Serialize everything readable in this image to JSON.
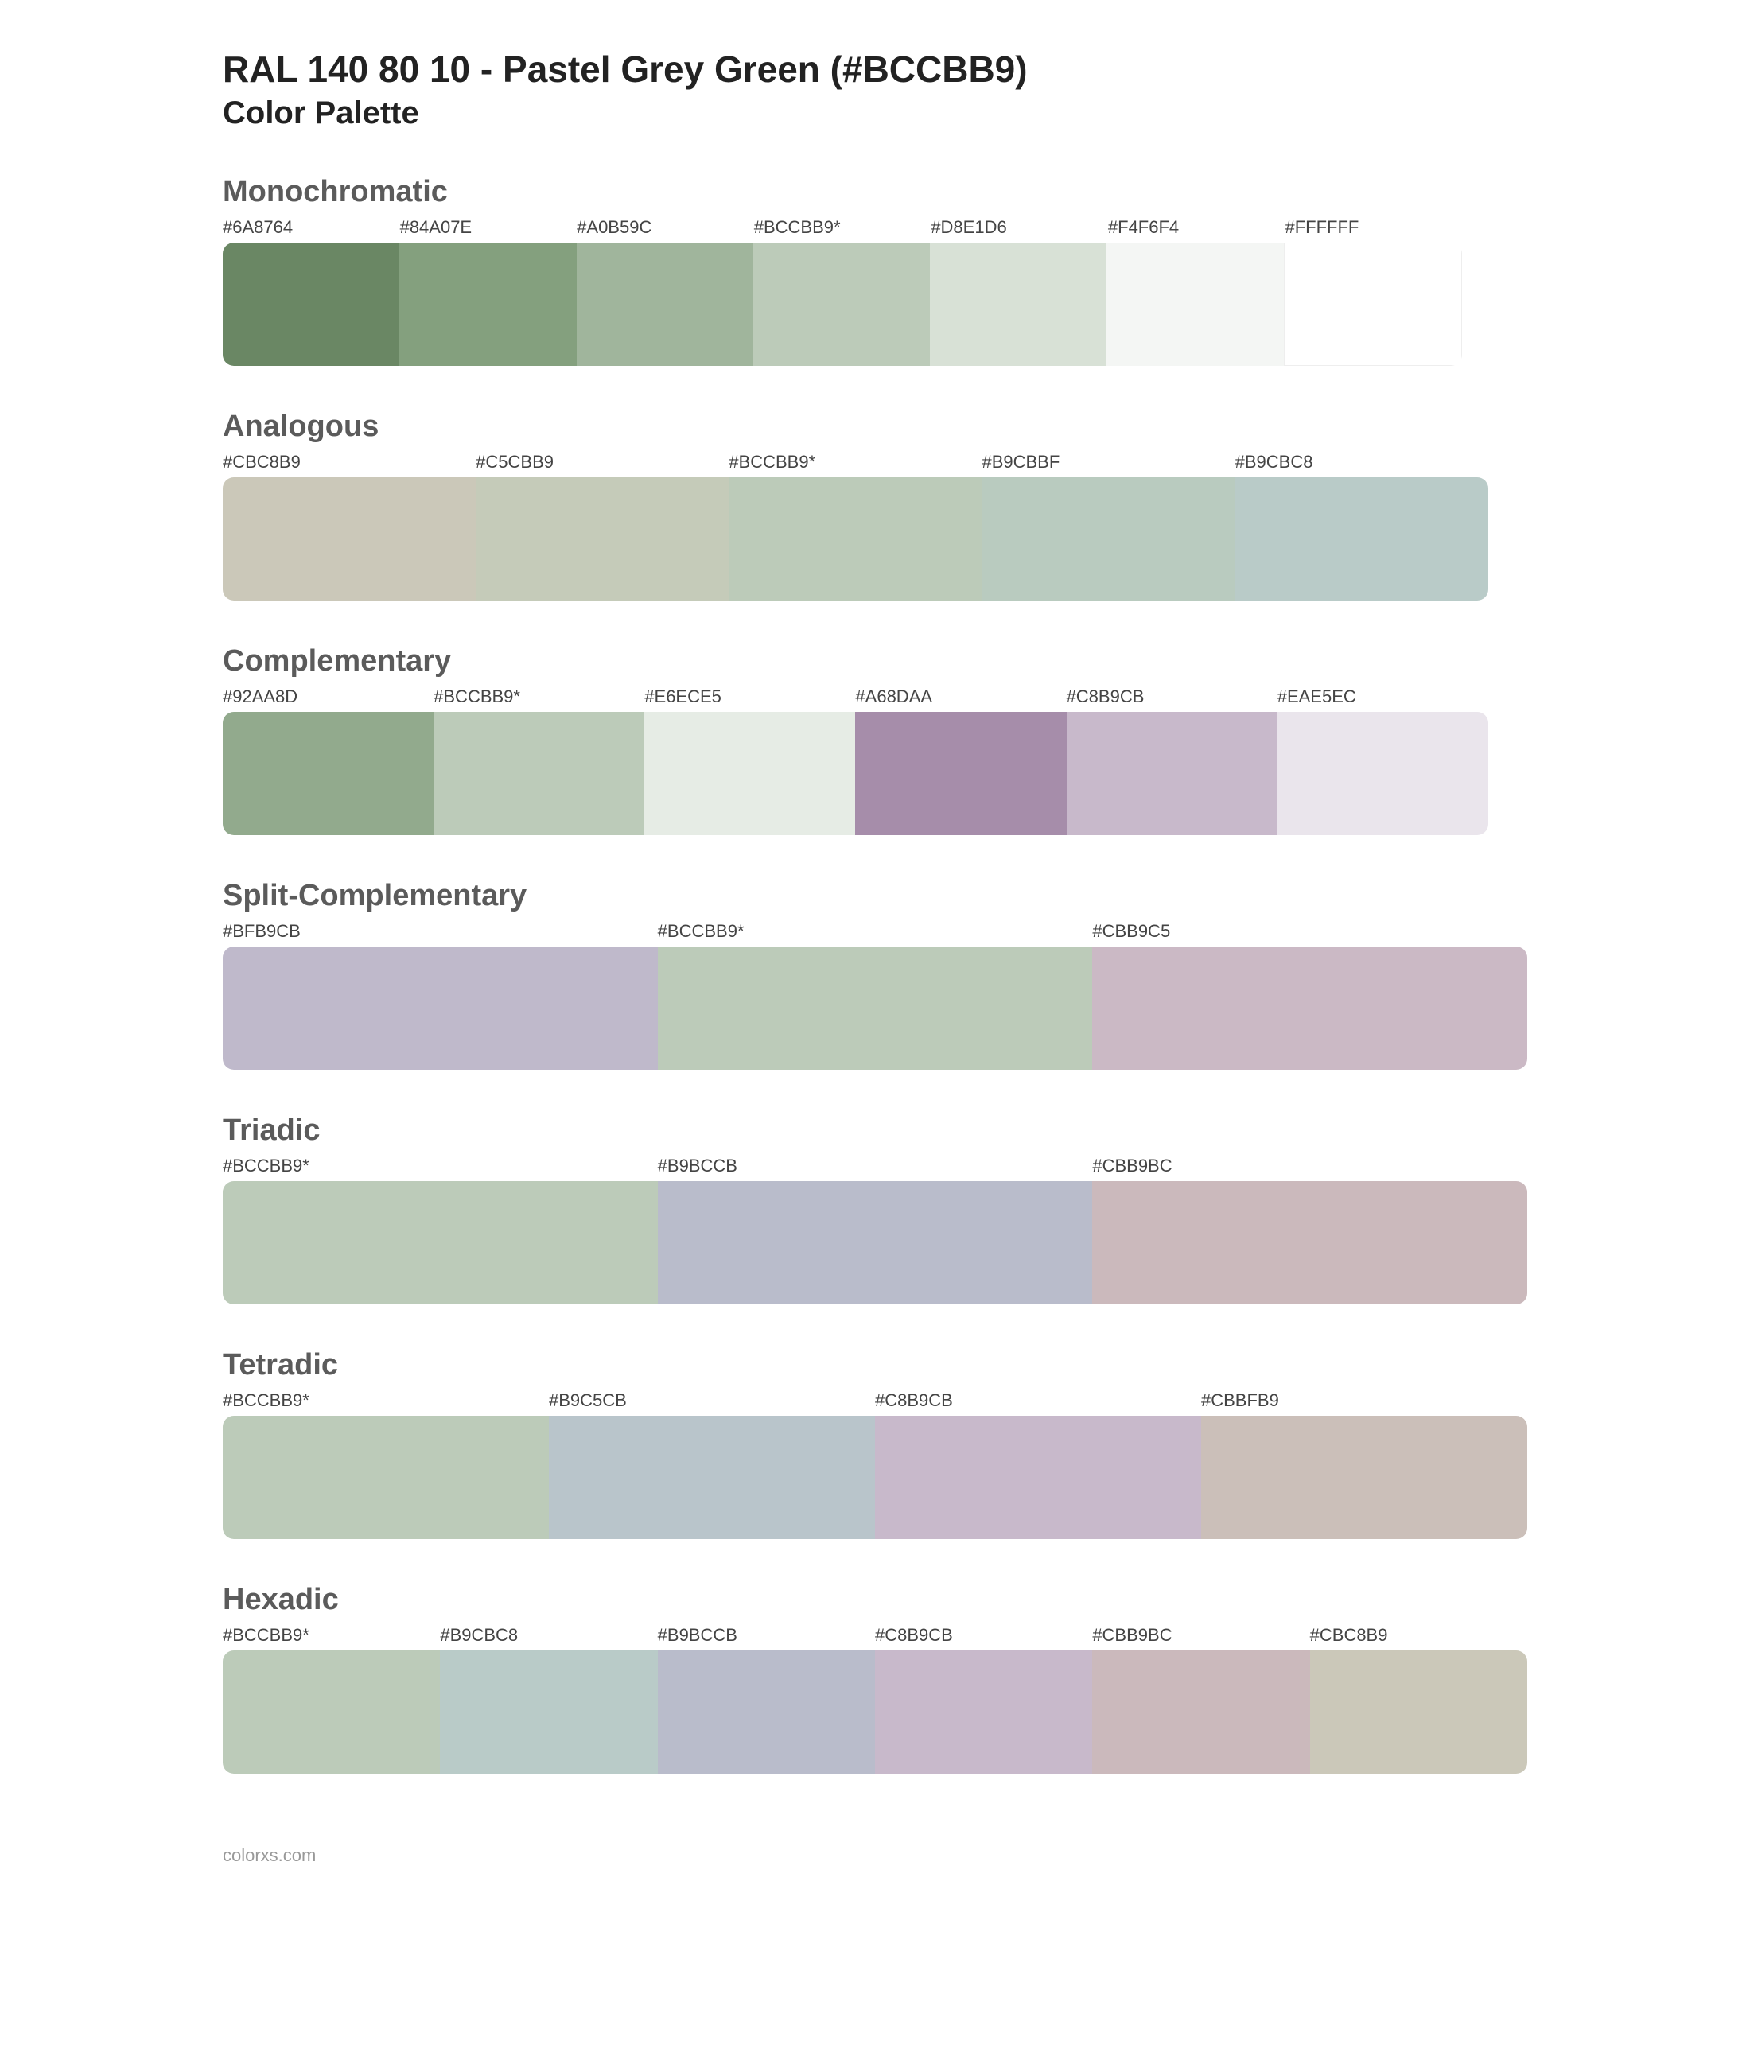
{
  "header": {
    "title": "RAL 140 80 10 - Pastel Grey Green (#BCCBB9)",
    "subtitle": "Color Palette"
  },
  "sections": [
    {
      "title": "Monochromatic",
      "swatch_row_width": "95%",
      "colors": [
        {
          "label": "#6A8764",
          "hex": "#6A8764"
        },
        {
          "label": "#84A07E",
          "hex": "#84A07E"
        },
        {
          "label": "#A0B59C",
          "hex": "#A0B59C"
        },
        {
          "label": "#BCCBB9*",
          "hex": "#BCCBB9"
        },
        {
          "label": "#D8E1D6",
          "hex": "#D8E1D6"
        },
        {
          "label": "#F4F6F4",
          "hex": "#F4F6F4"
        },
        {
          "label": "#FFFFFF",
          "hex": "#FFFFFF",
          "white_edge": true
        }
      ]
    },
    {
      "title": "Analogous",
      "swatch_row_width": "97%",
      "colors": [
        {
          "label": "#CBC8B9",
          "hex": "#CBC8B9"
        },
        {
          "label": "#C5CBB9",
          "hex": "#C5CBB9"
        },
        {
          "label": "#BCCBB9*",
          "hex": "#BCCBB9"
        },
        {
          "label": "#B9CBBF",
          "hex": "#B9CBBF"
        },
        {
          "label": "#B9CBC8",
          "hex": "#B9CBC8"
        }
      ]
    },
    {
      "title": "Complementary",
      "swatch_row_width": "97%",
      "colors": [
        {
          "label": "#92AA8D",
          "hex": "#92AA8D"
        },
        {
          "label": "#BCCBB9*",
          "hex": "#BCCBB9"
        },
        {
          "label": "#E6ECE5",
          "hex": "#E6ECE5"
        },
        {
          "label": "#A68DAA",
          "hex": "#A68DAA"
        },
        {
          "label": "#C8B9CB",
          "hex": "#C8B9CB"
        },
        {
          "label": "#EAE5EC",
          "hex": "#EAE5EC"
        }
      ]
    },
    {
      "title": "Split-Complementary",
      "swatch_row_width": "100%",
      "colors": [
        {
          "label": "#BFB9CB",
          "hex": "#BFB9CB"
        },
        {
          "label": "#BCCBB9*",
          "hex": "#BCCBB9"
        },
        {
          "label": "#CBB9C5",
          "hex": "#CBB9C5"
        }
      ]
    },
    {
      "title": "Triadic",
      "swatch_row_width": "100%",
      "colors": [
        {
          "label": "#BCCBB9*",
          "hex": "#BCCBB9"
        },
        {
          "label": "#B9BCCB",
          "hex": "#B9BCCB"
        },
        {
          "label": "#CBB9BC",
          "hex": "#CBB9BC"
        }
      ]
    },
    {
      "title": "Tetradic",
      "swatch_row_width": "100%",
      "colors": [
        {
          "label": "#BCCBB9*",
          "hex": "#BCCBB9"
        },
        {
          "label": "#B9C5CB",
          "hex": "#B9C5CB"
        },
        {
          "label": "#C8B9CB",
          "hex": "#C8B9CB"
        },
        {
          "label": "#CBBFB9",
          "hex": "#CBBFB9"
        }
      ]
    },
    {
      "title": "Hexadic",
      "swatch_row_width": "100%",
      "colors": [
        {
          "label": "#BCCBB9*",
          "hex": "#BCCBB9"
        },
        {
          "label": "#B9CBC8",
          "hex": "#B9CBC8"
        },
        {
          "label": "#B9BCCB",
          "hex": "#B9BCCB"
        },
        {
          "label": "#C8B9CB",
          "hex": "#C8B9CB"
        },
        {
          "label": "#CBB9BC",
          "hex": "#CBB9BC"
        },
        {
          "label": "#CBC8B9",
          "hex": "#CBC8B9"
        }
      ]
    }
  ],
  "footer": "colorxs.com",
  "style": {
    "title_fontsize": 46,
    "subtitle_fontsize": 40,
    "section_title_fontsize": 38,
    "section_title_color": "#5b5b5b",
    "label_fontsize": 22,
    "label_color": "#444",
    "swatch_height": 155,
    "swatch_border_radius": 14,
    "background": "#ffffff"
  }
}
